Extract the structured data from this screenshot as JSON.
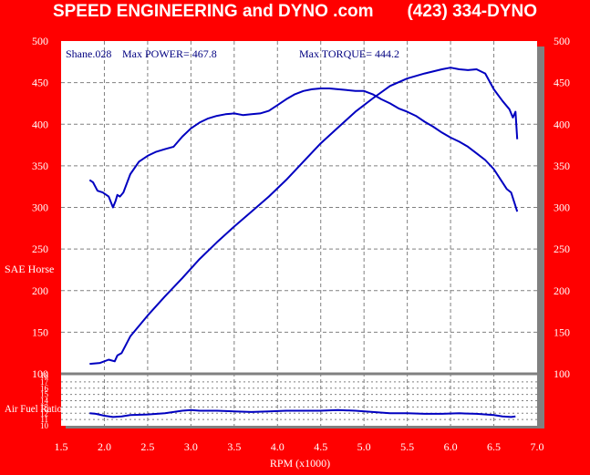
{
  "header": {
    "title": "SPEED ENGINEERING and DYNO .com       (423) 334-DYNO"
  },
  "annotations": {
    "run": "Shane.028",
    "max_power": "Max POWER= 467.8",
    "max_torque": "Max TORQUE= 444.2"
  },
  "colors": {
    "background": "#ff0000",
    "plot_area": "#ffffff",
    "series": "#0000c0",
    "grid": "#808080",
    "shadow": "#808080"
  },
  "chart_data": [
    {
      "type": "line",
      "xlabel": "RPM (x1000)",
      "ylabel": "SAE Horse",
      "xlim": [
        1.5,
        7.0
      ],
      "ylim": [
        100,
        500
      ],
      "x_ticks": [
        "1.5",
        "2.0",
        "2.5",
        "3.0",
        "3.5",
        "4.0",
        "4.5",
        "5.0",
        "5.5",
        "6.0",
        "6.5",
        "7.0"
      ],
      "y_ticks": [
        "100",
        "150",
        "200",
        "250",
        "300",
        "350",
        "400",
        "450",
        "500"
      ],
      "grid": true,
      "series": [
        {
          "name": "Power",
          "x": [
            1.83,
            1.95,
            2.05,
            2.12,
            2.15,
            2.2,
            2.3,
            2.5,
            2.7,
            2.9,
            3.1,
            3.3,
            3.5,
            3.7,
            3.9,
            4.1,
            4.3,
            4.5,
            4.7,
            4.9,
            5.1,
            5.3,
            5.5,
            5.7,
            5.9,
            6.0,
            6.1,
            6.2,
            6.3,
            6.4,
            6.5,
            6.6,
            6.68,
            6.72,
            6.75,
            6.77
          ],
          "y": [
            112,
            113,
            117,
            115,
            122,
            125,
            145,
            170,
            193,
            215,
            238,
            258,
            277,
            295,
            313,
            333,
            355,
            377,
            396,
            415,
            431,
            446,
            455,
            461,
            466,
            468,
            466,
            465,
            466,
            461,
            442,
            428,
            418,
            408,
            415,
            382
          ]
        },
        {
          "name": "Torque",
          "x": [
            1.83,
            1.87,
            1.92,
            1.98,
            2.05,
            2.1,
            2.13,
            2.15,
            2.18,
            2.22,
            2.3,
            2.4,
            2.5,
            2.6,
            2.7,
            2.8,
            2.9,
            3.0,
            3.1,
            3.2,
            3.3,
            3.4,
            3.5,
            3.6,
            3.7,
            3.8,
            3.9,
            4.0,
            4.1,
            4.2,
            4.3,
            4.4,
            4.5,
            4.6,
            4.7,
            4.8,
            4.9,
            5.0,
            5.1,
            5.2,
            5.3,
            5.4,
            5.5,
            5.6,
            5.7,
            5.8,
            5.9,
            6.0,
            6.1,
            6.2,
            6.3,
            6.4,
            6.5,
            6.6,
            6.65,
            6.7,
            6.74,
            6.77
          ],
          "y": [
            333,
            330,
            320,
            318,
            313,
            300,
            308,
            315,
            313,
            318,
            340,
            355,
            362,
            367,
            370,
            373,
            385,
            395,
            402,
            407,
            410,
            412,
            413,
            411,
            412,
            413,
            416,
            423,
            430,
            436,
            440,
            442,
            443,
            443,
            442,
            441,
            440,
            440,
            436,
            430,
            425,
            419,
            415,
            410,
            403,
            397,
            390,
            384,
            379,
            373,
            365,
            357,
            346,
            330,
            322,
            318,
            305,
            295
          ]
        }
      ]
    },
    {
      "type": "line",
      "xlabel": "",
      "ylabel": "Air Fuel Ratio",
      "xlim": [
        1.5,
        7.0
      ],
      "ylim": [
        10,
        18
      ],
      "y_ticks": [
        "10",
        "11",
        "12",
        "13",
        "14",
        "15",
        "16",
        "17",
        "18"
      ],
      "grid": true,
      "series": [
        {
          "name": "Air Fuel",
          "x": [
            1.83,
            1.9,
            2.0,
            2.1,
            2.2,
            2.3,
            2.5,
            2.7,
            2.9,
            3.0,
            3.1,
            3.3,
            3.5,
            3.7,
            3.9,
            4.1,
            4.3,
            4.5,
            4.7,
            4.9,
            5.1,
            5.3,
            5.5,
            5.7,
            5.9,
            6.1,
            6.3,
            6.5,
            6.6,
            6.7,
            6.75
          ],
          "y": [
            12.0,
            11.9,
            11.6,
            11.4,
            11.5,
            11.7,
            11.8,
            12.0,
            12.4,
            12.5,
            12.4,
            12.4,
            12.3,
            12.2,
            12.3,
            12.4,
            12.4,
            12.4,
            12.5,
            12.4,
            12.2,
            12.0,
            12.0,
            11.9,
            11.9,
            12.0,
            11.9,
            11.7,
            11.5,
            11.4,
            11.5
          ]
        }
      ]
    }
  ]
}
